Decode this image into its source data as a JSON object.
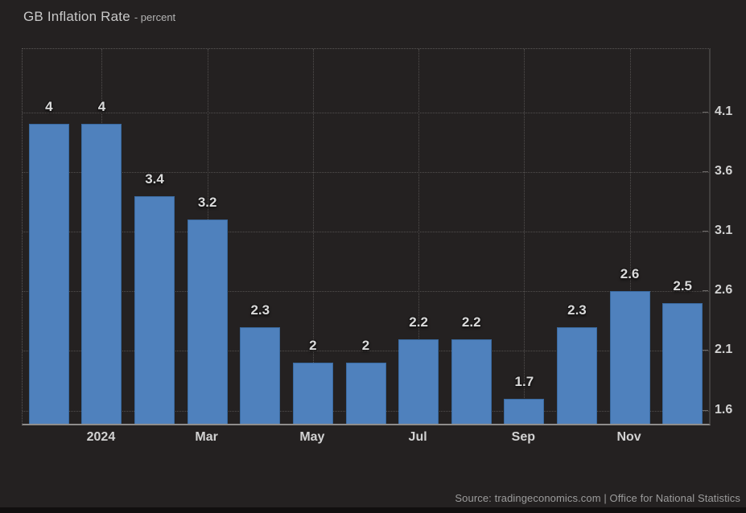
{
  "title": {
    "text": "GB Inflation Rate",
    "unit_suffix": "- percent"
  },
  "footer": {
    "source_text": "Source: tradingeconomics.com | Office for National Statistics"
  },
  "colors": {
    "background": "#242121",
    "bar_fill": "#4f81bd",
    "bar_border": "#3a6aa0",
    "grid_dotted": "#524f4e",
    "axis_right_line": "#413f3e",
    "axis_bottom_line": "#8f8d8c",
    "bar_label_text": "#dadada",
    "tick_label_text": "#d2d2d2",
    "title_text": "#c9c9c9",
    "source_text": "#9c9c9c"
  },
  "chart_data": {
    "type": "bar",
    "title": "GB Inflation Rate",
    "unit": "percent",
    "categories": [
      "",
      "2024",
      "",
      "Mar",
      "",
      "May",
      "",
      "Jul",
      "",
      "Sep",
      "",
      "Nov",
      ""
    ],
    "values": [
      4,
      4,
      3.4,
      3.2,
      2.3,
      2,
      2,
      2.2,
      2.2,
      1.7,
      2.3,
      2.6,
      2.5
    ],
    "bar_labels": [
      "4",
      "4",
      "3.4",
      "3.2",
      "2.3",
      "2",
      "2",
      "2.2",
      "2.2",
      "1.7",
      "2.3",
      "2.6",
      "2.5"
    ],
    "y_ticks": [
      1.6,
      2.1,
      2.6,
      3.1,
      3.6,
      4.1
    ],
    "ylim": [
      1.49,
      4.63
    ],
    "grid": true,
    "legend": "none",
    "y_axis_side": "right",
    "xlabel": "",
    "ylabel": ""
  }
}
